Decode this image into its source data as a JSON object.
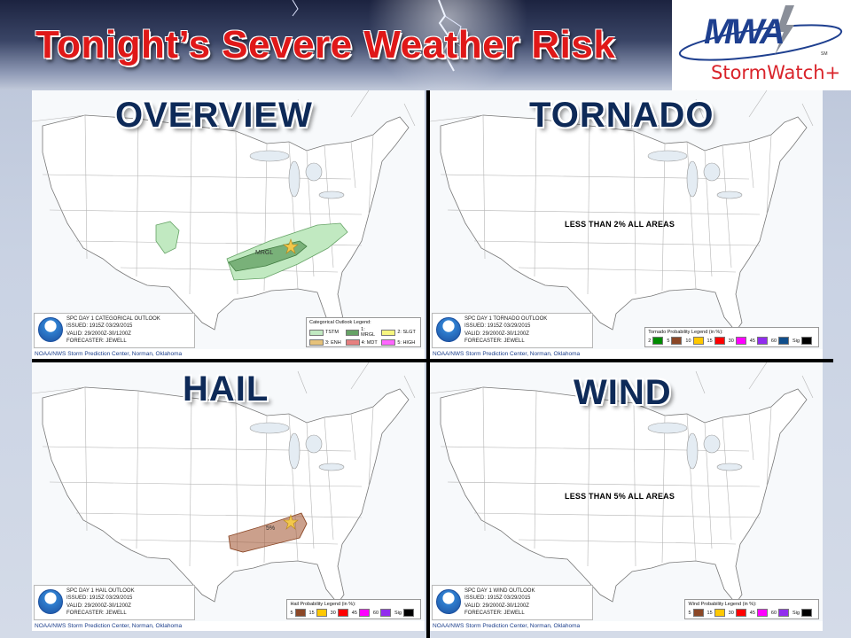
{
  "header": {
    "title": "Tonight’s Severe Weather Risk",
    "logo_main": "MWA",
    "logo_tm": "SM",
    "logo_sub": "StormWatch+"
  },
  "panels": [
    {
      "id": "overview",
      "title": "OVERVIEW",
      "info": [
        "SPC DAY 1 CATEGORICAL OUTLOOK",
        "ISSUED: 1915Z 03/29/2015",
        "VALID: 29/2000Z-30/1200Z",
        "FORECASTER: JEWELL"
      ],
      "credit": "NOAA/NWS Storm Prediction Center, Norman, Oklahoma",
      "legend_title": "Categorical Outlook Legend:",
      "legend_items": [
        {
          "label": "TSTM",
          "color": "#c1e9c1"
        },
        {
          "label": "1: MRGL",
          "color": "#66a366"
        },
        {
          "label": "2: SLGT",
          "color": "#f6f67f"
        },
        {
          "label": "3: ENH",
          "color": "#e6c27a"
        },
        {
          "label": "4: MDT",
          "color": "#e67f7f"
        },
        {
          "label": "5: HIGH",
          "color": "#ff66ff"
        }
      ],
      "map_label": "MRGL"
    },
    {
      "id": "tornado",
      "title": "TORNADO",
      "note": "LESS THAN 2% ALL AREAS",
      "info": [
        "SPC DAY 1 TORNADO OUTLOOK",
        "ISSUED: 1915Z 03/29/2015",
        "VALID: 29/2000Z-30/1200Z",
        "FORECASTER: JEWELL"
      ],
      "credit": "NOAA/NWS Storm Prediction Center, Norman, Oklahoma",
      "legend_title": "Tornado Probability Legend (in %):",
      "legend_items": [
        {
          "label": "2",
          "color": "#008b00"
        },
        {
          "label": "5",
          "color": "#8b4726"
        },
        {
          "label": "10",
          "color": "#ffc800"
        },
        {
          "label": "15",
          "color": "#ff0000"
        },
        {
          "label": "30",
          "color": "#ff00ff"
        },
        {
          "label": "45",
          "color": "#912cee"
        },
        {
          "label": "60",
          "color": "#104e8b"
        },
        {
          "label": "Sig",
          "color": "#000000"
        }
      ]
    },
    {
      "id": "hail",
      "title": "HAIL",
      "info": [
        "SPC DAY 1 HAIL OUTLOOK",
        "ISSUED: 1915Z 03/29/2015",
        "VALID: 29/2000Z-30/1200Z",
        "FORECASTER: JEWELL"
      ],
      "credit": "NOAA/NWS Storm Prediction Center, Norman, Oklahoma",
      "legend_title": "Hail Probability Legend (in %):",
      "legend_items": [
        {
          "label": "5",
          "color": "#8b4726"
        },
        {
          "label": "15",
          "color": "#ffc800"
        },
        {
          "label": "30",
          "color": "#ff0000"
        },
        {
          "label": "45",
          "color": "#ff00ff"
        },
        {
          "label": "60",
          "color": "#912cee"
        },
        {
          "label": "Sig",
          "color": "#000000"
        }
      ],
      "map_label": "5%"
    },
    {
      "id": "wind",
      "title": "WIND",
      "note": "LESS THAN 5% ALL AREAS",
      "info": [
        "SPC DAY 1 WIND OUTLOOK",
        "ISSUED: 1915Z 03/29/2015",
        "VALID: 29/2000Z-30/1200Z",
        "FORECASTER: JEWELL"
      ],
      "credit": "NOAA/NWS Storm Prediction Center, Norman, Oklahoma",
      "legend_title": "Wind Probability Legend (in %):",
      "legend_items": [
        {
          "label": "5",
          "color": "#8b4726"
        },
        {
          "label": "15",
          "color": "#ffc800"
        },
        {
          "label": "30",
          "color": "#ff0000"
        },
        {
          "label": "45",
          "color": "#ff00ff"
        },
        {
          "label": "60",
          "color": "#912cee"
        },
        {
          "label": "Sig",
          "color": "#000000"
        }
      ]
    }
  ],
  "colors": {
    "title_red": "#e01818",
    "panel_title_navy": "#0e2a58",
    "mrgl_green": "#66a366",
    "tstm_green": "#c1e9c1",
    "hail_brown": "#a0522d"
  }
}
